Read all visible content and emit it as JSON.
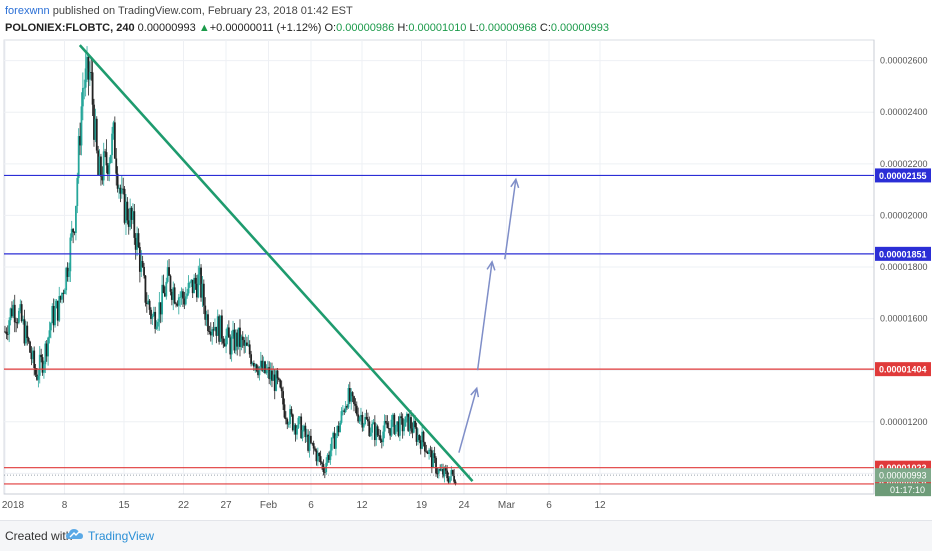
{
  "header": {
    "author": "forexwnn",
    "published_text": "published on TradingView.com, February 23, 2018 01:42 EST",
    "symbol": "POLONIEX:FLOBTC, 240",
    "last": "0.00000993",
    "change": "+0.00000011 (+1.12%)",
    "open_label": "O:",
    "open": "0.00000986",
    "high_label": "H:",
    "high": "0.00001010",
    "low_label": "L:",
    "low": "0.00000968",
    "close_label": "C:",
    "close": "0.00000993"
  },
  "footer": {
    "created": "Created with",
    "brand": "TradingView"
  },
  "colors": {
    "up": "#26a69a",
    "down": "#222222",
    "trendline": "#1e9b6e",
    "blue_level": "#2b2ed6",
    "red_level": "#e03a3a",
    "arrows": "#7f8ec8",
    "current_price_badge": "#7fa98a",
    "timer_badge": "#6d9b78"
  },
  "chart_data": {
    "type": "candlestick",
    "x_ticks": [
      "2018",
      "8",
      "15",
      "22",
      "27",
      "Feb",
      "6",
      "12",
      "19",
      "24",
      "Mar",
      "6",
      "12"
    ],
    "y_ticks": [
      "0.00002600",
      "0.00002400",
      "0.00002200",
      "0.00002000",
      "0.00001800",
      "0.00001600",
      "0.00001400",
      "0.00001200",
      "0.00001000"
    ],
    "ylim": [
      9.2e-06,
      2.68e-05
    ],
    "horizontal_levels": [
      {
        "value": 2.155e-05,
        "label": "0.00002155",
        "color": "blue"
      },
      {
        "value": 1.851e-05,
        "label": "0.00001851",
        "color": "blue"
      },
      {
        "value": 1.404e-05,
        "label": "0.00001404",
        "color": "red"
      },
      {
        "value": 1.022e-05,
        "label": "0.00001022",
        "color": "red"
      },
      {
        "value": 9.59e-06,
        "label": "0.00000959",
        "color": "red"
      }
    ],
    "current_price": {
      "value": 9.93e-06,
      "label": "0.00000993",
      "timer": "01:17:10"
    },
    "trendline": {
      "from": {
        "x": "Jan 9",
        "y": 2.66e-05
      },
      "to": {
        "x": "Feb 25",
        "y": 9.7e-06
      }
    },
    "projection_arrows": [
      {
        "from": {
          "x": "Feb 24",
          "y": 1.08e-05
        },
        "to": {
          "x": "Feb 25.5",
          "y": 1.33e-05
        }
      },
      {
        "from": {
          "x": "Feb 25.6",
          "y": 1.4e-05
        },
        "to": {
          "x": "Feb 28",
          "y": 1.82e-05
        }
      },
      {
        "from": {
          "x": "Mar 3.3",
          "y": 1.83e-05
        },
        "to": {
          "x": "Mar 4.6",
          "y": 2.14e-05
        }
      }
    ],
    "closes_trend": [
      1.55e-05,
      1.65e-05,
      1.6e-05,
      1.5e-05,
      1.38e-05,
      1.45e-05,
      1.6e-05,
      1.65e-05,
      1.8e-05,
      2e-05,
      2.5e-05,
      2.55e-05,
      2.15e-05,
      2.2e-05,
      2.3e-05,
      2.05e-05,
      2e-05,
      1.9e-05,
      1.7e-05,
      1.6e-05,
      1.65e-05,
      1.75e-05,
      1.7e-05,
      1.68e-05,
      1.72e-05,
      1.75e-05,
      1.6e-05,
      1.58e-05,
      1.55e-05,
      1.5e-05,
      1.52e-05,
      1.48e-05,
      1.45e-05,
      1.4e-05,
      1.38e-05,
      1.35e-05,
      1.25e-05,
      1.2e-05,
      1.18e-05,
      1.12e-05,
      1.08e-05,
      1.02e-05,
      1.1e-05,
      1.18e-05,
      1.3e-05,
      1.25e-05,
      1.22e-05,
      1.18e-05,
      1.15e-05,
      1.17e-05,
      1.19e-05,
      1.18e-05,
      1.2e-05,
      1.15e-05,
      1.12e-05,
      1.05e-05,
      1e-05,
      9.9e-06,
      9.9e-06
    ]
  }
}
